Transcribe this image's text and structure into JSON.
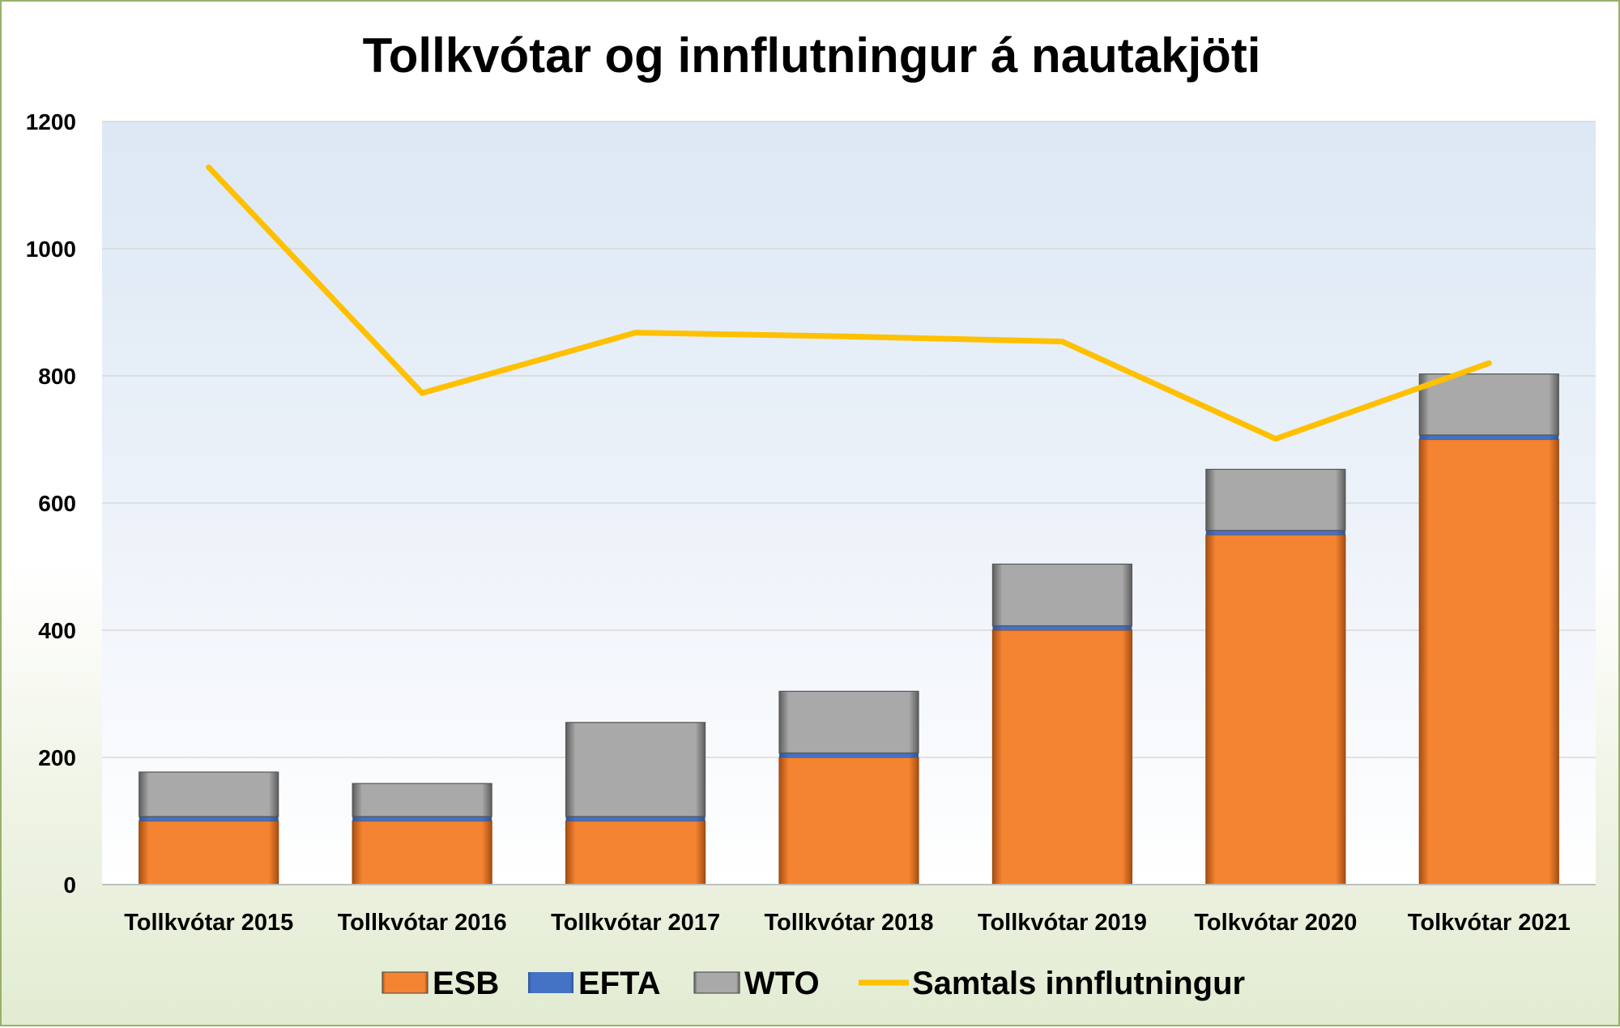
{
  "chart_data": {
    "type": "bar",
    "title": "Tollkvótar og innflutningur á nautakjöti",
    "xlabel": "",
    "ylabel": "",
    "ylim": [
      0,
      1200
    ],
    "yticks": [
      0,
      200,
      400,
      600,
      800,
      1000,
      1200
    ],
    "grid": true,
    "legend_position": "bottom",
    "stacked": true,
    "categories": [
      "Tollkvótar 2015",
      "Tollkvótar 2016",
      "Tollkvótar 2017",
      "Tollkvótar 2018",
      "Tollkvótar 2019",
      "Tolkvótar 2020",
      "Tolkvótar 2021"
    ],
    "series": [
      {
        "name": "ESB",
        "kind": "bar",
        "color": "#f58432",
        "values": [
          100,
          100,
          100,
          200,
          400,
          550,
          700
        ]
      },
      {
        "name": "EFTA",
        "kind": "bar",
        "color": "#4472c4",
        "values": [
          7,
          7,
          7,
          7,
          7,
          7,
          7
        ]
      },
      {
        "name": "WTO",
        "kind": "bar",
        "color": "#a6a6a6",
        "values": [
          70,
          52,
          148,
          97,
          97,
          96,
          96
        ]
      },
      {
        "name": "Samtals innflutningur",
        "kind": "line",
        "color": "#ffc000",
        "values": [
          1128,
          773,
          868,
          862,
          854,
          701,
          820
        ]
      }
    ]
  }
}
